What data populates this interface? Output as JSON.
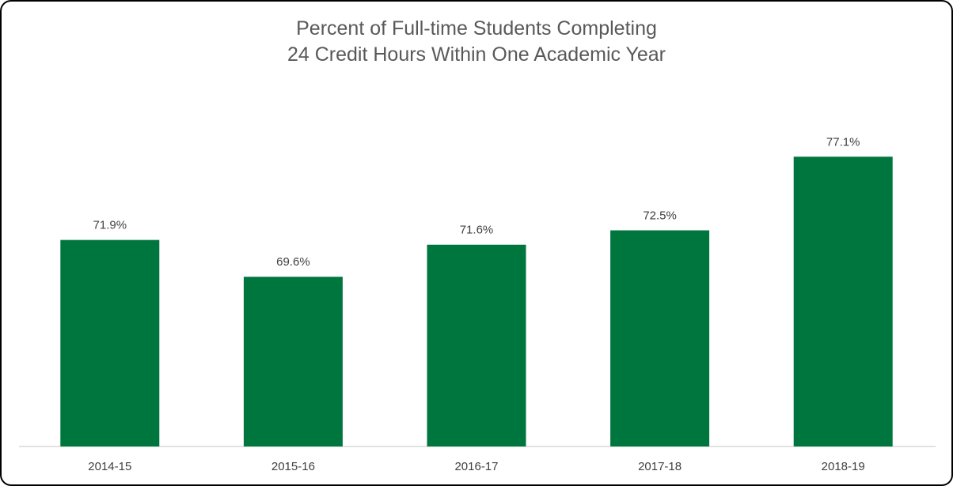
{
  "chart_data": {
    "type": "bar",
    "title_line_1": "Percent of Full-time Students Completing",
    "title_line_2": "24 Credit Hours Within One Academic Year",
    "categories": [
      "2014-15",
      "2015-16",
      "2016-17",
      "2017-18",
      "2018-19"
    ],
    "values": [
      71.9,
      69.6,
      71.6,
      72.5,
      77.1
    ],
    "data_labels": [
      "71.9%",
      "69.6%",
      "71.6%",
      "72.5%",
      "77.1%"
    ],
    "ylim": [
      59,
      78.5
    ],
    "grid": false,
    "legend": "none",
    "bar_color": "#00763F"
  }
}
